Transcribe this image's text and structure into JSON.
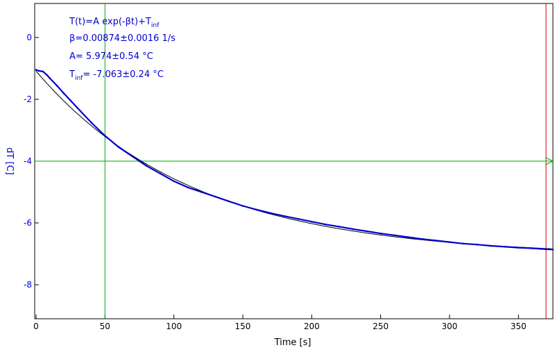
{
  "chart_data": {
    "type": "line",
    "xlabel": "Time [s]",
    "ylabel": "dT [C]",
    "xlim": [
      -1,
      375
    ],
    "ylim": [
      -9.1,
      1.1
    ],
    "x_ticks": [
      0,
      50,
      100,
      150,
      200,
      250,
      300,
      350
    ],
    "x_tick_labels": [
      "0",
      "50",
      "100",
      "150",
      "200",
      "250",
      "300",
      "350"
    ],
    "y_ticks": [
      0,
      -2,
      -4,
      -6,
      -8
    ],
    "y_tick_labels": [
      "0",
      "-2",
      "-4",
      "-6",
      "-8"
    ],
    "grid": false,
    "annotations": {
      "formula": {
        "prefix": "T(t)=A exp(-βt)+T",
        "sub": "inf"
      },
      "beta": "β=0.00874±0.0016 1/s",
      "amplitude": "A= 5.974±0.54 °C",
      "tinf": {
        "prefix": "T",
        "sub": "inf",
        "suffix": "= -7.063±0.24 °C"
      }
    },
    "markers": {
      "vertical_green_x": 50,
      "vertical_red_x": 370,
      "horizontal_green_y": -4
    },
    "fit": {
      "A": 5.974,
      "beta": 0.00874,
      "Tinf": -7.063,
      "x_start": 0,
      "x_end": 375
    },
    "series": [
      {
        "color": "#0000cc",
        "x": [
          0,
          2,
          5,
          8,
          10,
          15,
          20,
          25,
          30,
          40,
          50,
          60,
          70,
          80,
          90,
          100,
          110,
          120,
          130,
          140,
          150,
          160,
          170,
          180,
          190,
          200,
          210,
          220,
          230,
          240,
          250,
          260,
          270,
          280,
          290,
          300,
          310,
          320,
          330,
          340,
          350,
          360,
          370,
          375
        ],
        "y": [
          -1.05,
          -1.08,
          -1.1,
          -1.22,
          -1.32,
          -1.55,
          -1.8,
          -2.04,
          -2.28,
          -2.75,
          -3.18,
          -3.55,
          -3.85,
          -4.15,
          -4.4,
          -4.65,
          -4.85,
          -5.0,
          -5.15,
          -5.3,
          -5.45,
          -5.57,
          -5.68,
          -5.78,
          -5.87,
          -5.96,
          -6.05,
          -6.12,
          -6.2,
          -6.27,
          -6.34,
          -6.4,
          -6.46,
          -6.52,
          -6.57,
          -6.62,
          -6.67,
          -6.7,
          -6.74,
          -6.77,
          -6.8,
          -6.82,
          -6.85,
          -6.86
        ]
      }
    ],
    "colors": {
      "axis": "#000000",
      "tick_text": "#0000cc",
      "fit_line": "#000000",
      "marker_green": "#00aa00",
      "marker_red": "#cc0000"
    }
  }
}
